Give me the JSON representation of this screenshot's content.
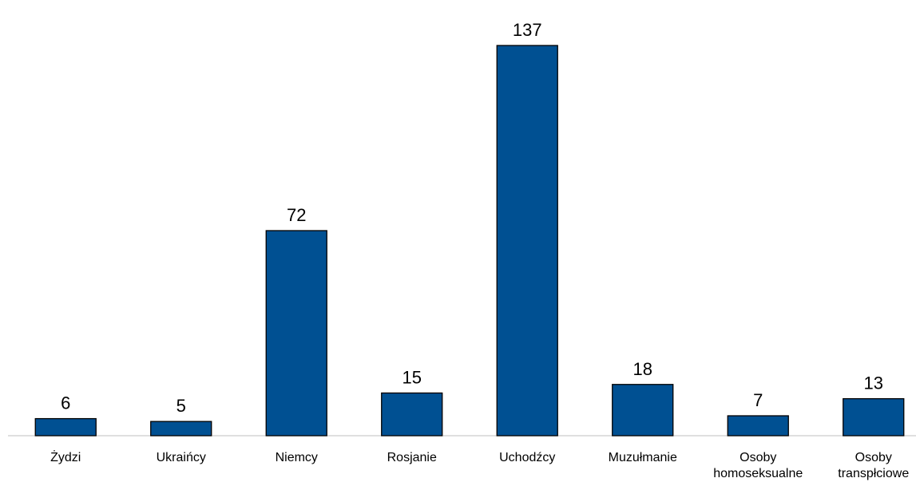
{
  "chart_data": {
    "type": "bar",
    "title": "",
    "xlabel": "",
    "ylabel": "",
    "categories": [
      [
        "Żydzi"
      ],
      [
        "Ukraińcy"
      ],
      [
        "Niemcy"
      ],
      [
        "Rosjanie"
      ],
      [
        "Uchodźcy"
      ],
      [
        "Muzułmanie"
      ],
      [
        "Osoby",
        "homoseksualne"
      ],
      [
        "Osoby",
        "transpłciowe"
      ]
    ],
    "values": [
      6,
      5,
      72,
      15,
      137,
      18,
      7,
      13
    ],
    "ylim": [
      0,
      137
    ],
    "grid": false,
    "legend": "none",
    "bar_color": "#005092"
  }
}
